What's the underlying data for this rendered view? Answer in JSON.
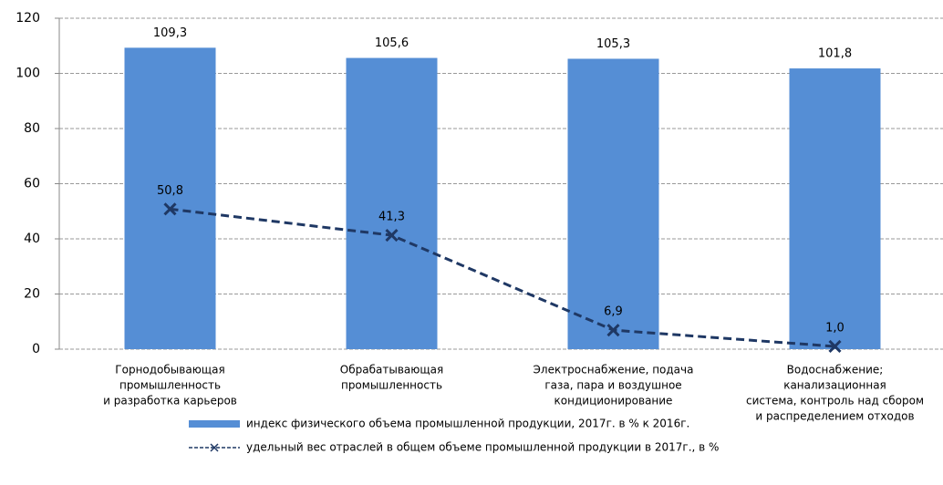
{
  "chart_data": {
    "type": "bar",
    "categories": [
      [
        "Горнодобывающая",
        "промышленность",
        "и разработка карьеров"
      ],
      [
        "Обрабатывающая",
        "промышленность"
      ],
      [
        "Электроснабжение, подача",
        "газа, пара и воздушное",
        "кондиционирование"
      ],
      [
        "Водоснабжение;",
        "канализационная",
        "система, контроль над сбором",
        "и распределением отходов"
      ]
    ],
    "series": [
      {
        "name": "индекс физического объема промышленной продукции, 2017г. в % к 2016г.",
        "type": "bar",
        "color": "#558ed5",
        "values": [
          109.3,
          105.6,
          105.3,
          101.8
        ],
        "value_labels": [
          "109,3",
          "105,6",
          "105,3",
          "101,8"
        ]
      },
      {
        "name": "удельный вес отраслей в общем объеме промышленной продукции в 2017г., в %",
        "type": "line",
        "color": "#1f3864",
        "values": [
          50.8,
          41.3,
          6.9,
          1.0
        ],
        "value_labels": [
          "50,8",
          "41,3",
          "6,9",
          "1,0"
        ]
      }
    ],
    "ylim": [
      0,
      120
    ],
    "yticks": [
      0,
      20,
      40,
      60,
      80,
      100,
      120
    ],
    "grid": true
  }
}
